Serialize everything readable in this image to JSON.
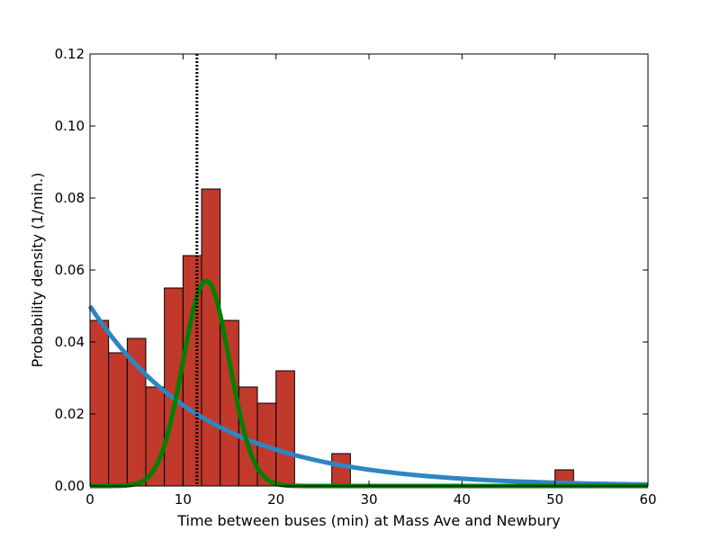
{
  "chart_data": {
    "type": "bar",
    "xlabel": "Time between buses (min) at Mass Ave and Newbury",
    "ylabel": "Probability density (1/min.)",
    "xlim": [
      0,
      60
    ],
    "ylim": [
      0,
      0.12
    ],
    "xticks": [
      "0",
      "10",
      "20",
      "30",
      "40",
      "50",
      "60"
    ],
    "xtick_values": [
      0,
      10,
      20,
      30,
      40,
      50,
      60
    ],
    "yticks": [
      "0.00",
      "0.02",
      "0.04",
      "0.06",
      "0.08",
      "0.10",
      "0.12"
    ],
    "ytick_values": [
      0,
      0.02,
      0.04,
      0.06,
      0.08,
      0.1,
      0.12
    ],
    "grid": false,
    "bin_width": 2,
    "histogram": {
      "color": "#c0392b",
      "bin_starts": [
        0,
        2,
        4,
        6,
        8,
        10,
        12,
        14,
        16,
        18,
        20,
        26,
        50
      ],
      "values": [
        0.046,
        0.037,
        0.041,
        0.0275,
        0.055,
        0.064,
        0.0825,
        0.046,
        0.0275,
        0.023,
        0.032,
        0.009,
        0.0045
      ]
    },
    "vline": {
      "x": 11.5,
      "style": "dotted"
    },
    "curves": [
      {
        "kind": "exponential",
        "color": "#2e86c1",
        "amplitude": 0.05,
        "mean": 12.5
      },
      {
        "kind": "gaussian",
        "color": "#008000",
        "peak": 0.057,
        "center": 12.5,
        "sigma": 2.5
      }
    ]
  }
}
